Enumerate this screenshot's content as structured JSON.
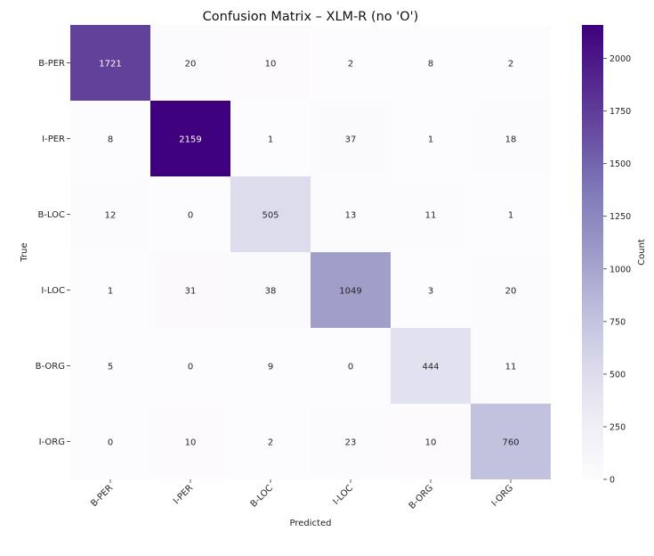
{
  "chart_data": {
    "type": "heatmap",
    "title": "Confusion Matrix – XLM-R (no 'O')",
    "xlabel": "Predicted",
    "ylabel": "True",
    "x_categories": [
      "B-PER",
      "I-PER",
      "B-LOC",
      "I-LOC",
      "B-ORG",
      "I-ORG"
    ],
    "y_categories": [
      "B-PER",
      "I-PER",
      "B-LOC",
      "I-LOC",
      "B-ORG",
      "I-ORG"
    ],
    "values": [
      [
        1721,
        20,
        10,
        2,
        8,
        2
      ],
      [
        8,
        2159,
        1,
        37,
        1,
        18
      ],
      [
        12,
        0,
        505,
        13,
        11,
        1
      ],
      [
        1,
        31,
        38,
        1049,
        3,
        20
      ],
      [
        5,
        0,
        9,
        0,
        444,
        11
      ],
      [
        0,
        10,
        2,
        23,
        10,
        760
      ]
    ],
    "colorbar": {
      "label": "Count",
      "range": [
        0,
        2159
      ],
      "ticks": [
        0,
        250,
        500,
        750,
        1000,
        1250,
        1500,
        1750,
        2000
      ],
      "colormap": "Purples",
      "color_low": "#fcfbfd",
      "color_high": "#3f007d"
    },
    "grid": false
  }
}
